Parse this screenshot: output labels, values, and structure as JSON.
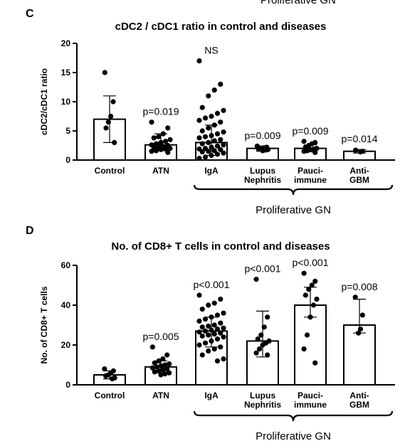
{
  "header_fragment": "Proliferative GN",
  "chart_data": [
    {
      "panel": "C",
      "type": "bar",
      "title": "cDC2 / cDC1 ratio in control and diseases",
      "xlabel": "",
      "ylabel": "cDC2/cDC1 ratio",
      "ylim": [
        0,
        20
      ],
      "yticks": [
        "0",
        "5",
        "10",
        "15",
        "20"
      ],
      "categories": [
        "Control",
        "ATN",
        "IgA",
        "Lupus\nNephritis",
        "Pauci-\nimmune",
        "Anti-\nGBM"
      ],
      "means": [
        7.0,
        2.6,
        3.0,
        2.0,
        2.0,
        1.5
      ],
      "error_bars": [
        [
          3.0,
          11.0
        ],
        [
          1.6,
          4.5
        ],
        [
          0.8,
          6.0
        ],
        [
          1.5,
          2.4
        ],
        [
          1.4,
          2.6
        ],
        [
          1.2,
          1.8
        ]
      ],
      "annotations": [
        "",
        "p=0.019",
        "NS",
        "p=0.009",
        "p=0.009",
        "p=0.014"
      ],
      "points": [
        [
          15.0,
          10.0,
          7.5,
          6.5,
          5.5,
          3.0
        ],
        [
          6.5,
          5.5,
          4.5,
          4.0,
          3.8,
          3.5,
          3.2,
          3.0,
          2.8,
          2.6,
          2.5,
          2.3,
          2.2,
          2.1,
          2.0,
          1.9,
          1.8,
          1.6,
          1.5,
          1.3
        ],
        [
          17.0,
          13.0,
          12.0,
          11.0,
          9.0,
          8.5,
          8.0,
          7.5,
          7.2,
          6.8,
          6.5,
          6.0,
          5.5,
          5.0,
          4.8,
          4.5,
          4.2,
          4.0,
          3.8,
          3.5,
          3.3,
          3.0,
          2.8,
          2.6,
          2.4,
          2.2,
          2.0,
          1.9,
          1.8,
          1.6,
          1.5,
          1.4,
          1.2,
          1.0,
          0.8,
          0.5,
          0.3
        ],
        [
          2.4,
          2.2,
          2.1,
          2.0,
          1.9,
          1.8,
          1.7,
          1.6
        ],
        [
          3.2,
          3.0,
          2.8,
          2.5,
          2.2,
          2.0,
          1.9,
          1.8,
          1.6,
          1.5,
          1.3
        ],
        [
          1.7,
          1.5,
          1.4
        ]
      ],
      "brace_label": "Proliferative GN"
    },
    {
      "panel": "D",
      "type": "bar",
      "title": "No. of CD8+ T cells in control and diseases",
      "xlabel": "",
      "ylabel": "No. of CD8+ T cells",
      "ylim": [
        0,
        60
      ],
      "yticks": [
        "0",
        "20",
        "40",
        "60"
      ],
      "categories": [
        "Control",
        "ATN",
        "IgA",
        "Lupus\nNephritis",
        "Pauci-\nimmune",
        "Anti-\nGBM"
      ],
      "means": [
        5.0,
        9.0,
        27.0,
        22.0,
        40.0,
        30.0
      ],
      "error_bars": [
        [
          3.0,
          7.0
        ],
        [
          6.0,
          12.0
        ],
        [
          19.0,
          34.0
        ],
        [
          14.0,
          37.0
        ],
        [
          34.0,
          49.0
        ],
        [
          26.0,
          43.0
        ]
      ],
      "annotations": [
        "",
        "p=0.005",
        "p<0.001",
        "p<0.001",
        "p<0.001",
        "p=0.008"
      ],
      "points": [
        [
          8.0,
          7.0,
          6.0,
          5.0,
          4.5,
          3.5,
          3.0
        ],
        [
          19.0,
          15.0,
          13.0,
          12.0,
          11.0,
          10.5,
          10.0,
          9.5,
          9.0,
          8.5,
          8.0,
          7.5,
          7.0,
          6.5,
          6.0,
          5.5,
          5.0
        ],
        [
          45.0,
          43.0,
          41.0,
          40.0,
          38.0,
          36.0,
          35.0,
          34.0,
          33.0,
          32.0,
          31.0,
          30.0,
          29.5,
          29.0,
          28.5,
          28.0,
          27.5,
          27.0,
          26.5,
          26.0,
          25.5,
          25.0,
          24.5,
          24.0,
          23.0,
          22.0,
          21.0,
          20.0,
          19.0,
          18.0,
          17.0,
          15.0,
          13.0,
          12.0
        ],
        [
          53.0,
          34.0,
          29.0,
          25.0,
          23.0,
          22.0,
          21.0,
          20.0,
          18.0,
          16.0,
          15.0
        ],
        [
          56.0,
          52.0,
          50.0,
          48.0,
          45.0,
          43.0,
          40.0,
          34.0,
          25.0,
          18.0,
          11.0
        ],
        [
          44.0,
          35.0,
          28.0,
          26.0
        ]
      ],
      "brace_label": "Proliferative GN"
    }
  ]
}
